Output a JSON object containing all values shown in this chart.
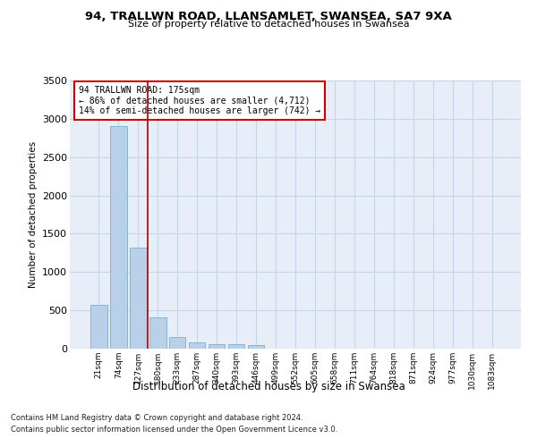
{
  "title_line1": "94, TRALLWN ROAD, LLANSAMLET, SWANSEA, SA7 9XA",
  "title_line2": "Size of property relative to detached houses in Swansea",
  "xlabel": "Distribution of detached houses by size in Swansea",
  "ylabel": "Number of detached properties",
  "bar_color": "#b8d0e8",
  "bar_edge_color": "#7aadd0",
  "categories": [
    "21sqm",
    "74sqm",
    "127sqm",
    "180sqm",
    "233sqm",
    "287sqm",
    "340sqm",
    "393sqm",
    "446sqm",
    "499sqm",
    "552sqm",
    "605sqm",
    "658sqm",
    "711sqm",
    "764sqm",
    "818sqm",
    "871sqm",
    "924sqm",
    "977sqm",
    "1030sqm",
    "1083sqm"
  ],
  "values": [
    570,
    2900,
    1320,
    410,
    155,
    80,
    60,
    55,
    45,
    0,
    0,
    0,
    0,
    0,
    0,
    0,
    0,
    0,
    0,
    0,
    0
  ],
  "annotation_line1": "94 TRALLWN ROAD: 175sqm",
  "annotation_line2": "← 86% of detached houses are smaller (4,712)",
  "annotation_line3": "14% of semi-detached houses are larger (742) →",
  "vline_x_index": 2.5,
  "ylim": [
    0,
    3500
  ],
  "yticks": [
    0,
    500,
    1000,
    1500,
    2000,
    2500,
    3000,
    3500
  ],
  "grid_color": "#c8d4e8",
  "background_color": "#e8eef8",
  "annotation_box_color": "white",
  "annotation_box_edge": "#cc0000",
  "vline_color": "#aa0000",
  "footnote_line1": "Contains HM Land Registry data © Crown copyright and database right 2024.",
  "footnote_line2": "Contains public sector information licensed under the Open Government Licence v3.0."
}
